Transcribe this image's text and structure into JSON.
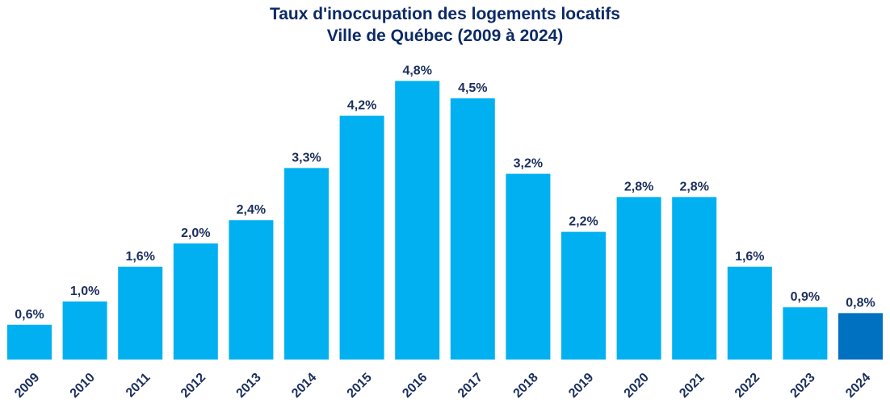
{
  "chart_data": {
    "type": "bar",
    "title": "Taux d'inoccupation des logements locatifs",
    "subtitle": "Ville de Québec (2009 à 2024)",
    "categories": [
      "2009",
      "2010",
      "2011",
      "2012",
      "2013",
      "2014",
      "2015",
      "2016",
      "2017",
      "2018",
      "2019",
      "2020",
      "2021",
      "2022",
      "2023",
      "2024"
    ],
    "values": [
      0.6,
      1.0,
      1.6,
      2.0,
      2.4,
      3.3,
      4.2,
      4.8,
      4.5,
      3.2,
      2.2,
      2.8,
      2.8,
      1.6,
      0.9,
      0.8
    ],
    "data_labels": [
      "0,6%",
      "1,0%",
      "1,6%",
      "2,0%",
      "2,4%",
      "3,3%",
      "4,2%",
      "4,8%",
      "4,5%",
      "3,2%",
      "2,2%",
      "2,8%",
      "2,8%",
      "1,6%",
      "0,9%",
      "0,8%"
    ],
    "highlight_index": 15,
    "colors": {
      "bar": "#00b0f0",
      "highlight": "#0070c0",
      "text": "#1b2f5e",
      "title": "#0b2a66"
    },
    "ylim": [
      0,
      5
    ],
    "xlabel": "",
    "ylabel": "",
    "grid": false,
    "legend": "none"
  }
}
